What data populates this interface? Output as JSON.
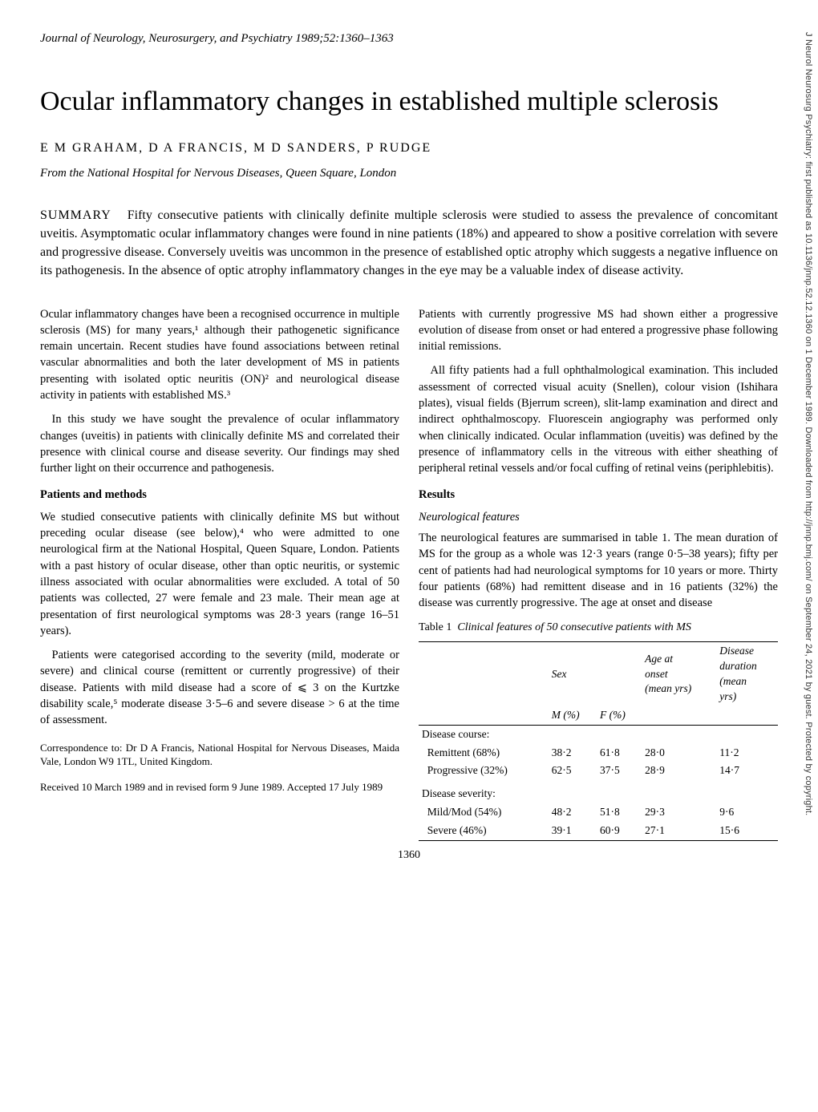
{
  "journal_header": "Journal of Neurology, Neurosurgery, and Psychiatry 1989;52:1360–1363",
  "title": "Ocular inflammatory changes in established multiple sclerosis",
  "authors": "E M GRAHAM,  D A FRANCIS,  M D SANDERS,  P RUDGE",
  "affiliation": "From the National Hospital for Nervous Diseases, Queen Square, London",
  "summary_label": "SUMMARY",
  "summary_text": "Fifty consecutive patients with clinically definite multiple sclerosis were studied to assess the prevalence of concomitant uveitis. Asymptomatic ocular inflammatory changes were found in nine patients (18%) and appeared to show a positive correlation with severe and progressive disease. Conversely uveitis was uncommon in the presence of established optic atrophy which suggests a negative influence on its pathogenesis. In the absence of optic atrophy inflammatory changes in the eye may be a valuable index of disease activity.",
  "left": {
    "p1": "Ocular inflammatory changes have been a recognised occurrence in multiple sclerosis (MS) for many years,¹ although their pathogenetic significance remain uncertain. Recent studies have found associations between retinal vascular abnormalities and both the later development of MS in patients presenting with isolated optic neuritis (ON)² and neurological disease activity in patients with established MS.³",
    "p2": "In this study we have sought the prevalence of ocular inflammatory changes (uveitis) in patients with clinically definite MS and correlated their presence with clinical course and disease severity. Our findings may shed further light on their occurrence and pathogenesis.",
    "methods_heading": "Patients and methods",
    "p3": "We studied consecutive patients with clinically definite MS but without preceding ocular disease (see below),⁴ who were admitted to one neurological firm at the National Hospital, Queen Square, London. Patients with a past history of ocular disease, other than optic neuritis, or systemic illness associated with ocular abnormalities were excluded. A total of 50 patients was collected, 27 were female and 23 male. Their mean age at presentation of first neurological symptoms was 28·3 years (range 16–51 years).",
    "p4": "Patients were categorised according to the severity (mild, moderate or severe) and clinical course (remittent or currently progressive) of their disease. Patients with mild disease had a score of ⩽ 3 on the Kurtzke disability scale,⁵ moderate disease 3·5–6 and severe disease > 6 at the time of assessment.",
    "correspondence": "Correspondence to: Dr D A Francis, National Hospital for Nervous Diseases, Maida Vale, London W9 1TL, United Kingdom.",
    "received": "Received 10 March 1989 and in revised form 9 June 1989. Accepted 17 July 1989"
  },
  "right": {
    "p1": "Patients with currently progressive MS had shown either a progressive evolution of disease from onset or had entered a progressive phase following initial remissions.",
    "p2": "All fifty patients had a full ophthalmological examination. This included assessment of corrected visual acuity (Snellen), colour vision (Ishihara plates), visual fields (Bjerrum screen), slit-lamp examination and direct and indirect ophthalmoscopy. Fluorescein angiography was performed only when clinically indicated. Ocular inflammation (uveitis) was defined by the presence of inflammatory cells in the vitreous with either sheathing of peripheral retinal vessels and/or focal cuffing of retinal veins (periphlebitis).",
    "results_heading": "Results",
    "neuro_heading": "Neurological features",
    "p3": "The neurological features are summarised in table 1. The mean duration of MS for the group as a whole was 12·3 years (range 0·5–38 years); fifty per cent of patients had had neurological symptoms for 10 years or more. Thirty four patients (68%) had remittent disease and in 16 patients (32%) the disease was currently progressive. The age at onset and disease"
  },
  "table1": {
    "label": "Table 1",
    "title": "Clinical features of 50 consecutive patients with MS",
    "header_row1": [
      "",
      "Sex",
      "",
      "Age at onset (mean yrs)",
      "Disease duration (mean yrs)"
    ],
    "header_row2": [
      "",
      "M (%)",
      "F (%)",
      "",
      ""
    ],
    "groups": [
      {
        "label": "Disease course:",
        "rows": [
          {
            "name": "Remittent (68%)",
            "m": "38·2",
            "f": "61·8",
            "age": "28·0",
            "dur": "11·2"
          },
          {
            "name": "Progressive (32%)",
            "m": "62·5",
            "f": "37·5",
            "age": "28·9",
            "dur": "14·7"
          }
        ]
      },
      {
        "label": "Disease severity:",
        "rows": [
          {
            "name": "Mild/Mod (54%)",
            "m": "48·2",
            "f": "51·8",
            "age": "29·3",
            "dur": "9·6"
          },
          {
            "name": "Severe (46%)",
            "m": "39·1",
            "f": "60·9",
            "age": "27·1",
            "dur": "15·6"
          }
        ]
      }
    ]
  },
  "page_number": "1360",
  "sidebar": "J Neurol Neurosurg Psychiatry: first published as 10.1136/jnnp.52.12.1360 on 1 December 1989. Downloaded from http://jnnp.bmj.com/ on September 24, 2021 by guest. Protected by copyright."
}
